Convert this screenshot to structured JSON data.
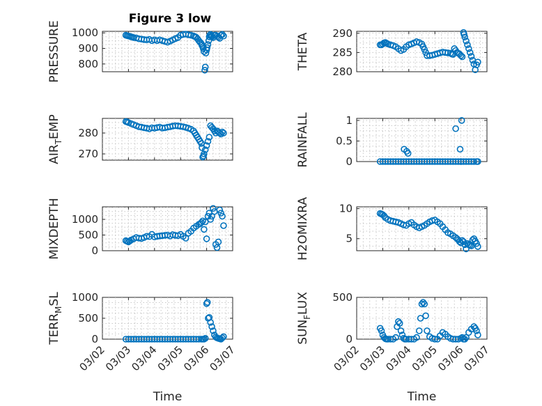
{
  "title": "Figure 3 low",
  "colors": {
    "series": "#0072BD",
    "axis": "#262626",
    "grid": "#c8c8c8"
  },
  "x_tick_labels": [
    "03/02",
    "03/03",
    "03/04",
    "03/05",
    "03/06",
    "03/07"
  ],
  "xlabel": "Time",
  "chart_data": [
    {
      "type": "scatter",
      "ylabel": "PRESSURE",
      "grid": true,
      "xlim": [
        0,
        5
      ],
      "ylim": [
        750,
        1010
      ],
      "yticks": [
        "800",
        "900",
        "1000"
      ],
      "ytick_values": [
        800,
        900,
        1000
      ],
      "x": [
        0.9,
        0.95,
        1.0,
        1.05,
        1.1,
        1.15,
        1.2,
        1.3,
        1.4,
        1.5,
        1.6,
        1.7,
        1.8,
        1.9,
        2.0,
        2.1,
        2.2,
        2.3,
        2.4,
        2.5,
        2.6,
        2.7,
        2.8,
        2.9,
        3.0,
        3.1,
        3.2,
        3.3,
        3.4,
        3.5,
        3.55,
        3.6,
        3.65,
        3.7,
        3.75,
        3.8,
        3.82,
        3.85,
        3.87,
        3.9,
        3.93,
        3.95,
        3.97,
        4.0,
        4.02,
        4.05,
        4.08,
        4.1,
        4.12,
        4.15,
        4.18,
        4.2,
        4.25,
        4.3,
        4.35,
        4.4,
        4.45,
        4.5,
        4.55,
        4.6,
        4.65
      ],
      "y": [
        985,
        982,
        980,
        978,
        975,
        973,
        970,
        968,
        962,
        960,
        957,
        955,
        958,
        950,
        955,
        950,
        955,
        950,
        945,
        940,
        947,
        955,
        963,
        970,
        985,
        990,
        992,
        988,
        985,
        980,
        976,
        972,
        962,
        950,
        940,
        930,
        920,
        910,
        900,
        880,
        760,
        780,
        870,
        890,
        905,
        925,
        950,
        975,
        985,
        990,
        980,
        975,
        970,
        985,
        985,
        978,
        972,
        965,
        985,
        990,
        980
      ],
      "series": []
    },
    {
      "type": "scatter",
      "ylabel": "THETA",
      "grid": true,
      "xlim": [
        0,
        5
      ],
      "ylim": [
        280,
        290.5
      ],
      "yticks": [
        "280",
        "285",
        "290"
      ],
      "ytick_values": [
        280,
        285,
        290
      ],
      "x": [
        0.9,
        0.95,
        1.0,
        1.05,
        1.1,
        1.15,
        1.2,
        1.3,
        1.4,
        1.5,
        1.6,
        1.7,
        1.8,
        1.9,
        2.0,
        2.1,
        2.2,
        2.3,
        2.4,
        2.5,
        2.55,
        2.6,
        2.65,
        2.7,
        2.8,
        2.9,
        3.0,
        3.1,
        3.2,
        3.3,
        3.4,
        3.5,
        3.6,
        3.65,
        3.7,
        3.75,
        3.8,
        3.85,
        3.9,
        3.95,
        4.0,
        4.05,
        4.1,
        4.12,
        4.15,
        4.2,
        4.25,
        4.3,
        4.35,
        4.4,
        4.45,
        4.5,
        4.55,
        4.6,
        4.65
      ],
      "y": [
        287,
        287,
        287.2,
        287.5,
        287.6,
        287.4,
        287.2,
        287,
        286.8,
        286.5,
        286,
        285.5,
        285.8,
        286.5,
        287,
        287.2,
        287.5,
        287.8,
        287.6,
        287.2,
        286.5,
        285.8,
        285,
        284.2,
        284.2,
        284.3,
        284.5,
        284.7,
        284.9,
        285.1,
        285,
        284.9,
        284.8,
        284.6,
        284.5,
        286,
        285.5,
        285,
        284.8,
        284.6,
        284.2,
        283.9,
        290.2,
        289.7,
        289,
        288,
        287,
        286,
        285,
        284,
        283,
        282,
        280.5,
        281.8,
        282.5
      ],
      "series": []
    },
    {
      "type": "scatter",
      "ylabel": "AIR_TEMP",
      "grid": true,
      "xlim": [
        0,
        5
      ],
      "ylim": [
        267,
        287
      ],
      "yticks": [
        "270",
        "280"
      ],
      "ytick_values": [
        270,
        280
      ],
      "x": [
        0.9,
        0.95,
        1.0,
        1.1,
        1.2,
        1.3,
        1.4,
        1.5,
        1.6,
        1.7,
        1.8,
        1.9,
        2.0,
        2.1,
        2.2,
        2.3,
        2.4,
        2.5,
        2.6,
        2.7,
        2.8,
        2.9,
        3.0,
        3.1,
        3.2,
        3.3,
        3.4,
        3.5,
        3.55,
        3.6,
        3.65,
        3.7,
        3.75,
        3.8,
        3.82,
        3.85,
        3.88,
        3.9,
        3.95,
        4.0,
        4.05,
        4.1,
        4.15,
        4.2,
        4.25,
        4.3,
        4.35,
        4.4,
        4.45,
        4.5,
        4.55,
        4.6,
        4.65
      ],
      "y": [
        285.5,
        285.3,
        285,
        284.5,
        284,
        283.5,
        283,
        282.8,
        282.5,
        282.3,
        282,
        282.5,
        282.3,
        282.6,
        282.8,
        282.4,
        282.5,
        282.8,
        283,
        283.3,
        283.5,
        283.4,
        283.2,
        283,
        282.7,
        282.3,
        281.8,
        281,
        280,
        279,
        278,
        277,
        276,
        275,
        273,
        268.5,
        269,
        270,
        272,
        274,
        276,
        278,
        283.5,
        282.7,
        282,
        281,
        280,
        281,
        280.5,
        280,
        279.5,
        280.5,
        280
      ],
      "series": []
    },
    {
      "type": "scatter",
      "ylabel": "RAINFALL",
      "grid": true,
      "xlim": [
        0,
        5
      ],
      "ylim": [
        0,
        1.05
      ],
      "yticks": [
        "0",
        "0.5",
        "1"
      ],
      "ytick_values": [
        0,
        0.5,
        1
      ],
      "x": [
        0.9,
        1.0,
        1.1,
        1.2,
        1.3,
        1.4,
        1.5,
        1.6,
        1.7,
        1.8,
        1.9,
        2.0,
        2.1,
        2.2,
        2.3,
        2.4,
        2.5,
        2.6,
        2.7,
        2.8,
        2.9,
        3.0,
        3.1,
        3.2,
        3.3,
        3.4,
        3.5,
        3.6,
        3.7,
        3.8,
        3.9,
        4.0,
        4.1,
        4.2,
        4.3,
        4.4,
        4.5,
        4.6,
        4.65,
        1.82,
        1.92,
        1.97,
        3.8,
        3.97,
        4.03,
        4.0
      ],
      "y": [
        0,
        0,
        0,
        0,
        0,
        0,
        0,
        0,
        0,
        0,
        0,
        0,
        0,
        0,
        0,
        0,
        0,
        0,
        0,
        0,
        0,
        0,
        0,
        0,
        0,
        0,
        0,
        0,
        0,
        0,
        0,
        0,
        0,
        0,
        0,
        0,
        0,
        0,
        0,
        0.3,
        0.25,
        0.2,
        0.8,
        0.3,
        1.0,
        0
      ],
      "series": []
    },
    {
      "type": "scatter",
      "ylabel": "MIXDEPTH",
      "grid": true,
      "xlim": [
        0,
        5
      ],
      "ylim": [
        0,
        1400
      ],
      "yticks": [
        "0",
        "500",
        "1000"
      ],
      "ytick_values": [
        0,
        500,
        1000
      ],
      "x": [
        0.9,
        0.95,
        1.0,
        1.05,
        1.1,
        1.2,
        1.3,
        1.4,
        1.5,
        1.6,
        1.7,
        1.8,
        1.9,
        2.0,
        2.1,
        2.2,
        2.3,
        2.4,
        2.5,
        2.6,
        2.7,
        2.8,
        2.9,
        3.0,
        3.1,
        3.2,
        3.3,
        3.4,
        3.5,
        3.6,
        3.7,
        3.75,
        3.8,
        3.85,
        3.9,
        3.95,
        4.0,
        4.05,
        4.1,
        4.15,
        4.2,
        4.25,
        4.3,
        4.35,
        4.4,
        4.45,
        4.5,
        4.55,
        4.6,
        4.65
      ],
      "y": [
        320,
        300,
        280,
        310,
        340,
        380,
        420,
        400,
        390,
        420,
        460,
        450,
        520,
        440,
        460,
        470,
        480,
        490,
        500,
        470,
        510,
        490,
        480,
        520,
        460,
        400,
        560,
        620,
        720,
        780,
        840,
        860,
        900,
        950,
        680,
        920,
        380,
        1100,
        1200,
        1000,
        1100,
        1350,
        1250,
        200,
        100,
        280,
        1300,
        1200,
        1100,
        800
      ],
      "series": []
    },
    {
      "type": "scatter",
      "ylabel": "H2OMIXRA",
      "grid": true,
      "xlim": [
        0,
        5
      ],
      "ylim": [
        3,
        10.3
      ],
      "yticks": [
        "5",
        "10"
      ],
      "ytick_values": [
        5,
        10
      ],
      "x": [
        0.9,
        0.95,
        1.0,
        1.05,
        1.1,
        1.2,
        1.3,
        1.4,
        1.5,
        1.6,
        1.7,
        1.8,
        1.9,
        2.0,
        2.1,
        2.2,
        2.3,
        2.4,
        2.5,
        2.6,
        2.7,
        2.8,
        2.9,
        3.0,
        3.1,
        3.2,
        3.3,
        3.4,
        3.5,
        3.6,
        3.7,
        3.8,
        3.85,
        3.9,
        3.95,
        4.0,
        4.05,
        4.1,
        4.15,
        4.2,
        4.25,
        4.3,
        4.35,
        4.4,
        4.45,
        4.5,
        4.55,
        4.6,
        4.65
      ],
      "y": [
        9.2,
        9.1,
        9.0,
        8.8,
        8.5,
        8.2,
        8.0,
        7.9,
        7.8,
        7.7,
        7.5,
        7.3,
        7.2,
        7.5,
        7.7,
        7.3,
        7.0,
        6.8,
        7.0,
        7.2,
        7.5,
        7.8,
        8.0,
        8.1,
        7.8,
        7.5,
        7.0,
        6.5,
        6.0,
        5.8,
        5.5,
        5.2,
        5.0,
        4.8,
        4.5,
        4.3,
        4.7,
        4.5,
        4.0,
        3.3,
        4.2,
        4.0,
        3.9,
        3.8,
        4.8,
        5.0,
        4.6,
        4.2,
        3.7
      ],
      "series": []
    },
    {
      "type": "scatter",
      "ylabel": "TERR_MSL",
      "grid": true,
      "xlim": [
        0,
        5
      ],
      "ylim": [
        0,
        1000
      ],
      "yticks": [
        "0",
        "500",
        "1000"
      ],
      "ytick_values": [
        0,
        500,
        1000
      ],
      "x": [
        0.9,
        1.0,
        1.1,
        1.2,
        1.3,
        1.4,
        1.5,
        1.6,
        1.7,
        1.8,
        1.9,
        2.0,
        2.1,
        2.2,
        2.3,
        2.4,
        2.5,
        2.6,
        2.7,
        2.8,
        2.9,
        3.0,
        3.1,
        3.2,
        3.3,
        3.4,
        3.5,
        3.6,
        3.7,
        3.8,
        3.85,
        3.9,
        3.95,
        4.0,
        4.03,
        4.06,
        4.1,
        4.15,
        4.2,
        4.25,
        4.3,
        4.35,
        4.4,
        4.45,
        4.5,
        4.55,
        4.6,
        4.65
      ],
      "y": [
        0,
        0,
        0,
        0,
        0,
        0,
        0,
        0,
        0,
        0,
        0,
        0,
        0,
        0,
        0,
        0,
        0,
        0,
        0,
        0,
        0,
        0,
        0,
        0,
        0,
        0,
        0,
        0,
        0,
        0,
        0,
        0,
        20,
        850,
        880,
        500,
        520,
        400,
        300,
        200,
        100,
        50,
        30,
        20,
        10,
        0,
        30,
        60
      ],
      "series": []
    },
    {
      "type": "scatter",
      "ylabel": "SUN_FLUX",
      "grid": true,
      "xlim": [
        0,
        5
      ],
      "ylim": [
        0,
        500
      ],
      "yticks": [
        "0",
        "500"
      ],
      "ytick_values": [
        0,
        500
      ],
      "x": [
        0.9,
        0.95,
        1.0,
        1.05,
        1.1,
        1.15,
        1.2,
        1.3,
        1.4,
        1.5,
        1.55,
        1.6,
        1.65,
        1.7,
        1.75,
        1.8,
        1.85,
        1.9,
        2.0,
        2.1,
        2.2,
        2.3,
        2.4,
        2.45,
        2.5,
        2.55,
        2.6,
        2.65,
        2.7,
        2.8,
        2.9,
        3.0,
        3.1,
        3.2,
        3.3,
        3.4,
        3.5,
        3.6,
        3.7,
        3.8,
        3.9,
        4.0,
        4.05,
        4.1,
        4.15,
        4.2,
        4.3,
        4.4,
        4.5,
        4.55,
        4.6,
        4.65
      ],
      "y": [
        130,
        100,
        50,
        20,
        5,
        0,
        0,
        0,
        0,
        20,
        150,
        210,
        190,
        100,
        50,
        10,
        0,
        0,
        0,
        0,
        0,
        20,
        100,
        250,
        420,
        440,
        420,
        280,
        100,
        30,
        10,
        0,
        0,
        40,
        80,
        60,
        30,
        10,
        0,
        0,
        0,
        10,
        20,
        0,
        0,
        20,
        80,
        120,
        150,
        130,
        100,
        50
      ],
      "series": []
    }
  ]
}
